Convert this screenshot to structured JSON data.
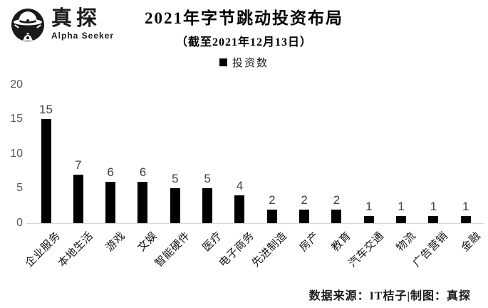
{
  "logo": {
    "brand_cn": "真探",
    "brand_en": "Alpha Seeker"
  },
  "header": {
    "title": "2021年字节跳动投资布局",
    "subtitle": "（截至2021年12月13日）"
  },
  "legend": {
    "label": "投资数"
  },
  "chart_data": {
    "type": "bar",
    "title": "2021年字节跳动投资布局",
    "subtitle": "（截至2021年12月13日）",
    "legend_entries": [
      "投资数"
    ],
    "categories": [
      "企业服务",
      "本地生活",
      "游戏",
      "文娱",
      "智能硬件",
      "医疗",
      "电子商务",
      "先进制造",
      "房产",
      "教育",
      "汽车交通",
      "物流",
      "广告营销",
      "金融"
    ],
    "values": [
      15,
      7,
      6,
      6,
      5,
      5,
      4,
      2,
      2,
      2,
      1,
      1,
      1,
      1
    ],
    "xlabel": "",
    "ylabel": "",
    "ylim": [
      0,
      20
    ],
    "yticks": [
      0,
      5,
      10,
      15,
      20
    ],
    "grid": false,
    "data_labels": true,
    "legend_position": "top-center",
    "x_tick_rotation_deg": 45
  },
  "footer": {
    "credit": "数据来源：IT桔子|制图：真探"
  },
  "colors": {
    "bar": "#000000",
    "axis_label": "#595959",
    "data_label": "#404040",
    "baseline": "#d6d6d6",
    "background": "#ffffff",
    "brand": "#1a1a1a"
  }
}
